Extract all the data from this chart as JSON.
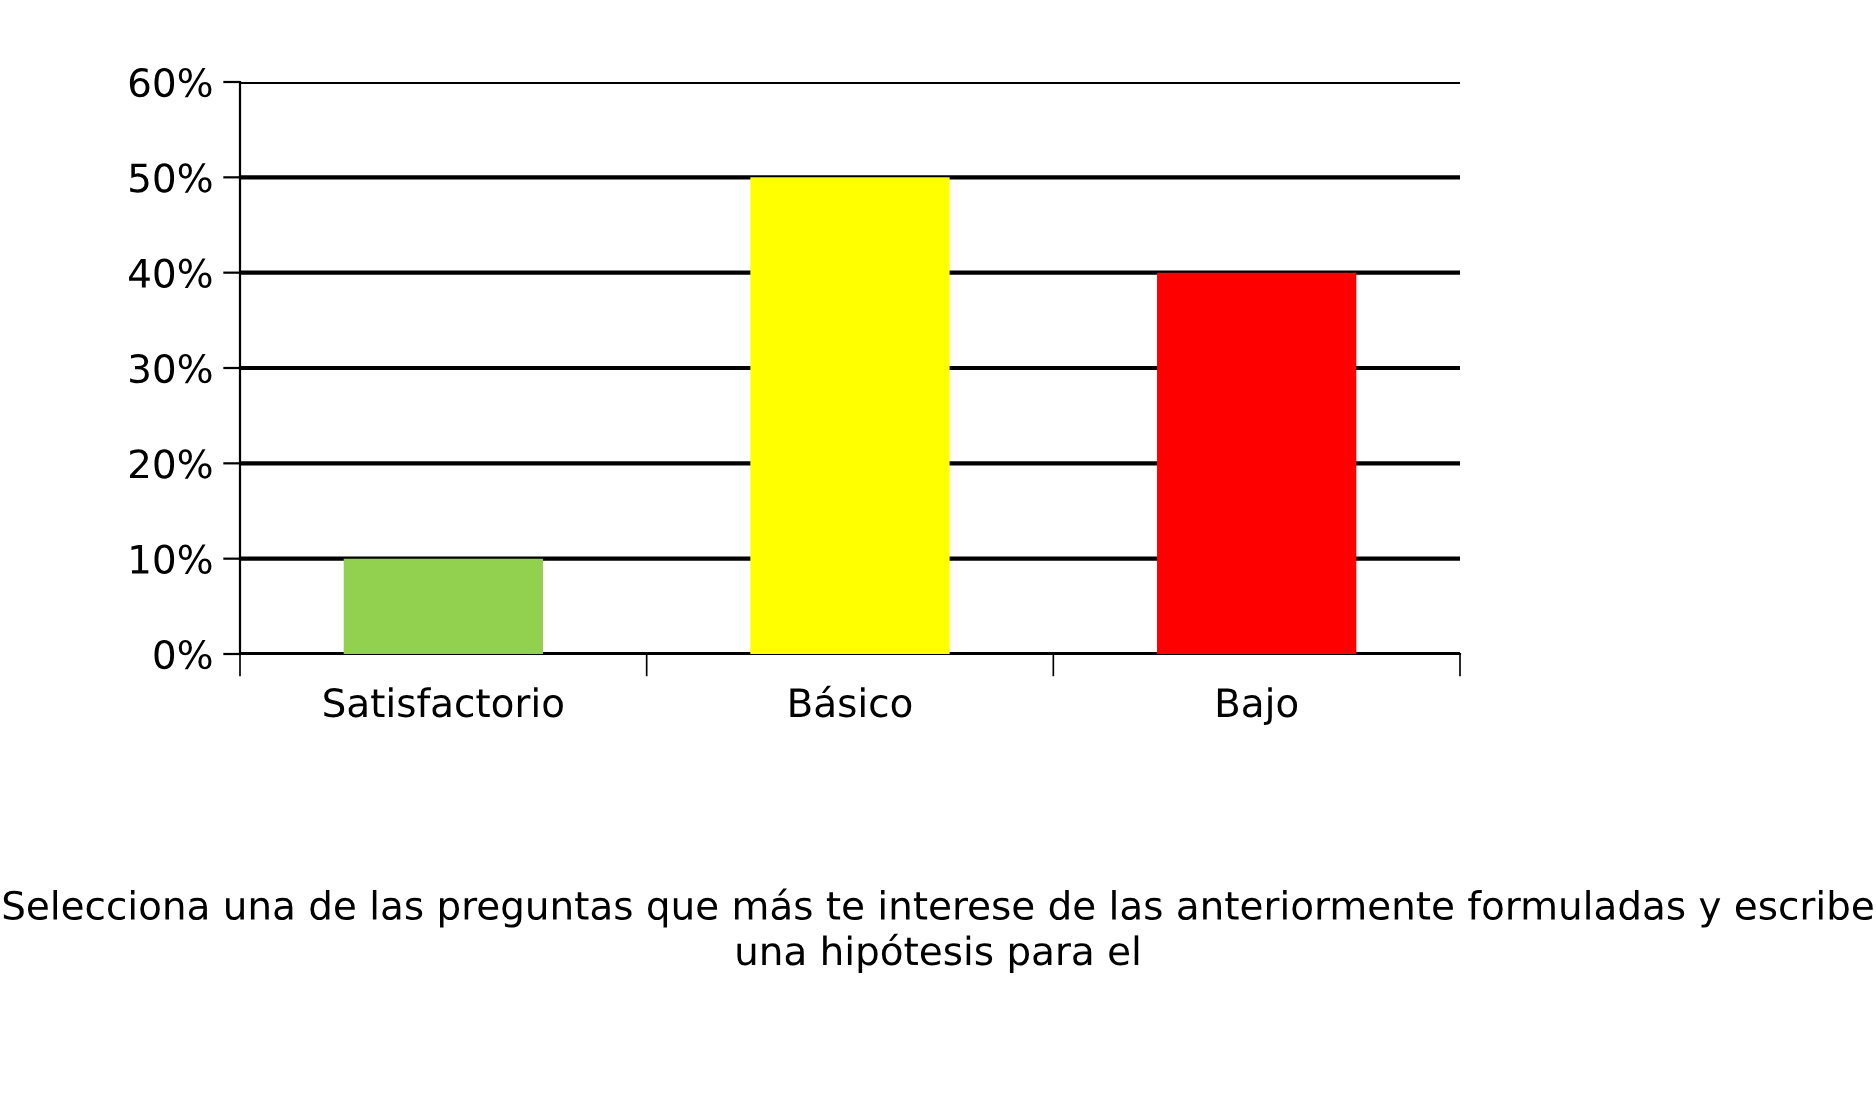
{
  "chart_data": {
    "type": "bar",
    "categories": [
      "Satisfactorio",
      "Básico",
      "Bajo"
    ],
    "values": [
      10,
      50,
      40
    ],
    "colors": [
      "#92d050",
      "#ffff00",
      "#ff0000"
    ],
    "ylim": [
      0,
      60
    ],
    "yticks": [
      {
        "value": 0,
        "label": "0%"
      },
      {
        "value": 10,
        "label": "10%"
      },
      {
        "value": 20,
        "label": "20%"
      },
      {
        "value": 30,
        "label": "30%"
      },
      {
        "value": 40,
        "label": "40%"
      },
      {
        "value": 50,
        "label": "50%"
      },
      {
        "value": 60,
        "label": "60%"
      }
    ],
    "grid": "y",
    "annotations": [
      "Selecciona una de las preguntas que más te interese de las anteriormente formuladas y escribe una hipótesis para el"
    ]
  }
}
